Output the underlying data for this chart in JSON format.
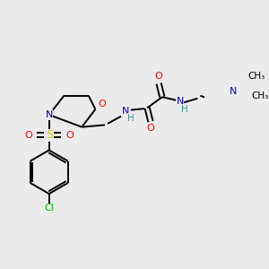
{
  "bg_color": "#ebebeb",
  "atom_colors": {
    "C": "#000000",
    "N": "#0000cc",
    "O": "#ff0000",
    "S": "#cccc00",
    "Cl": "#00bb00",
    "H": "#4a9090"
  },
  "figsize": [
    3.0,
    3.0
  ],
  "dpi": 100
}
